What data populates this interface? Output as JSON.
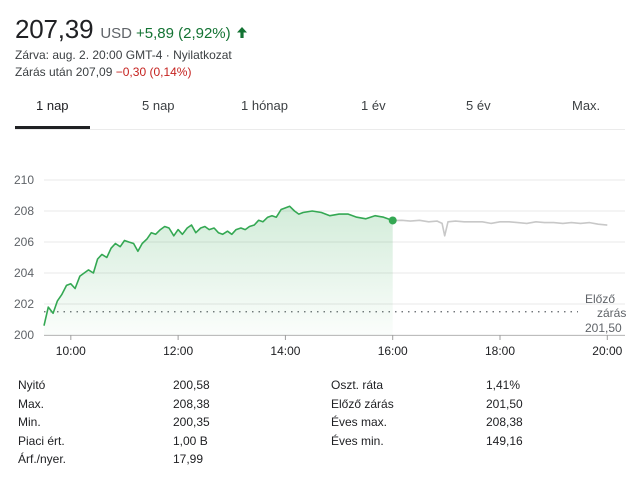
{
  "quote": {
    "price": "207,39",
    "currency": "USD",
    "change": "+5,89 (2,92%)",
    "arrow_icon": "arrow-up-icon",
    "status": "Zárva: aug. 2. 20:00 GMT-4 · Nyilatkozat",
    "after_hours_label": "Zárás után 207,09",
    "after_hours_change": "−0,30 (0,14%)"
  },
  "tabs": [
    {
      "label": "1 nap",
      "active": true
    },
    {
      "label": "5 nap",
      "active": false
    },
    {
      "label": "1 hónap",
      "active": false
    },
    {
      "label": "1 év",
      "active": false
    },
    {
      "label": "5 év",
      "active": false
    },
    {
      "label": "Max.",
      "active": false
    }
  ],
  "chart_data": {
    "type": "line",
    "ylim": [
      200,
      210
    ],
    "y_ticks": [
      "210",
      "208",
      "206",
      "204",
      "202",
      "200"
    ],
    "x_ticks": [
      "10:00",
      "12:00",
      "14:00",
      "16:00",
      "18:00",
      "20:00"
    ],
    "previous_close": {
      "label_line1": "Előző",
      "label_line2": "zárás",
      "value": "201,50",
      "y": 201.5
    },
    "colors": {
      "session": "#34a853",
      "after_hours": "#c8c8c8",
      "fill": "#e6f4ea",
      "prev_close_line": "#5f6368"
    },
    "series": [
      {
        "x": [
          9.5,
          9.58,
          9.67,
          9.75,
          9.83,
          9.92,
          10.0,
          10.08,
          10.17,
          10.25,
          10.33,
          10.42,
          10.5,
          10.58,
          10.67,
          10.75,
          10.83,
          10.92,
          11.0,
          11.08,
          11.17,
          11.25,
          11.33,
          11.42,
          11.5,
          11.58,
          11.67,
          11.75,
          11.83,
          11.92,
          12.0,
          12.08,
          12.17,
          12.25,
          12.33,
          12.42,
          12.5,
          12.58,
          12.67,
          12.75,
          12.83,
          12.92,
          13.0,
          13.08,
          13.17,
          13.25,
          13.33,
          13.42,
          13.5,
          13.58,
          13.67,
          13.75,
          13.83,
          13.92,
          14.0,
          14.08,
          14.17,
          14.25,
          14.33,
          14.5,
          14.67,
          14.83,
          15.0,
          15.17,
          15.33,
          15.5,
          15.67,
          15.83,
          16.0
        ],
        "y": [
          200.6,
          201.8,
          201.4,
          202.2,
          202.6,
          203.2,
          203.3,
          203.0,
          203.8,
          204.0,
          204.2,
          204.0,
          204.9,
          205.2,
          205.0,
          205.6,
          205.9,
          205.7,
          206.1,
          206.0,
          205.9,
          205.4,
          205.9,
          206.2,
          206.6,
          206.5,
          206.8,
          207.0,
          206.9,
          206.4,
          206.8,
          206.5,
          206.9,
          207.1,
          206.6,
          206.9,
          207.0,
          206.8,
          206.9,
          206.6,
          206.5,
          206.7,
          206.5,
          206.8,
          206.9,
          206.8,
          207.0,
          207.1,
          207.4,
          207.3,
          207.6,
          207.7,
          207.6,
          208.1,
          208.2,
          208.3,
          208.0,
          207.8,
          207.9,
          208.0,
          207.9,
          207.7,
          207.8,
          207.8,
          207.6,
          207.5,
          207.7,
          207.6,
          207.39
        ]
      },
      {
        "x": [
          16.0,
          16.17,
          16.33,
          16.5,
          16.67,
          16.83,
          16.92,
          16.97,
          17.03,
          17.17,
          17.33,
          17.5,
          17.67,
          17.83,
          18.0,
          18.17,
          18.33,
          18.5,
          18.67,
          18.83,
          19.0,
          19.17,
          19.33,
          19.5,
          19.67,
          19.83,
          20.0
        ],
        "y": [
          207.39,
          207.4,
          207.35,
          207.4,
          207.3,
          207.35,
          207.2,
          206.4,
          207.3,
          207.35,
          207.3,
          207.3,
          207.3,
          207.2,
          207.3,
          207.3,
          207.25,
          207.2,
          207.3,
          207.25,
          207.25,
          207.2,
          207.25,
          207.2,
          207.25,
          207.15,
          207.09
        ]
      }
    ]
  },
  "stats_left": [
    {
      "label": "Nyitó",
      "value": "200,58"
    },
    {
      "label": "Max.",
      "value": "208,38"
    },
    {
      "label": "Min.",
      "value": "200,35"
    },
    {
      "label": "Piaci ért.",
      "value": "1,00 B"
    },
    {
      "label": "Árf./nyer.",
      "value": "17,99"
    }
  ],
  "stats_right": [
    {
      "label": "Oszt. ráta",
      "value": "1,41%"
    },
    {
      "label": "Előző zárás",
      "value": "201,50"
    },
    {
      "label": "Éves max.",
      "value": "208,38"
    },
    {
      "label": "Éves min.",
      "value": "149,16"
    }
  ]
}
